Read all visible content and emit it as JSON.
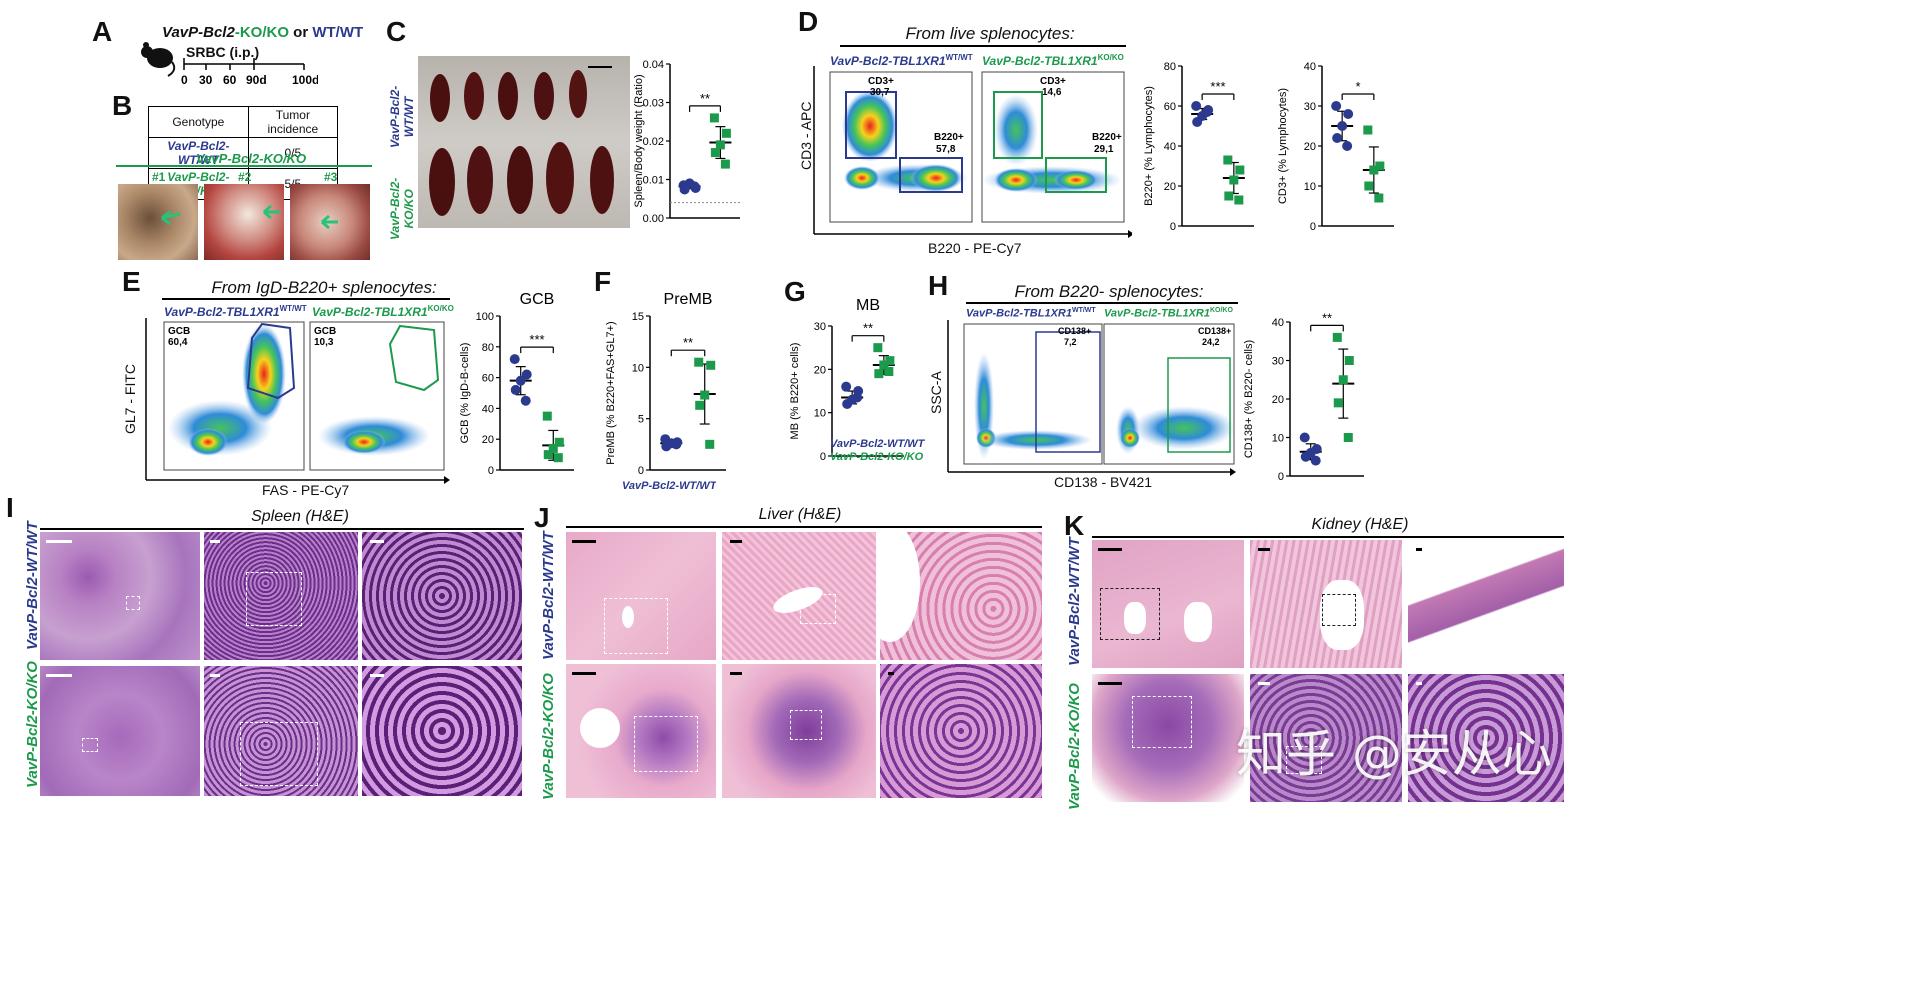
{
  "panels": {
    "A": {
      "label": "A",
      "title_part1": "VavP-Bcl2",
      "title_part2": "-KO/KO",
      "title_or": " or ",
      "title_part3": "WT/WT",
      "treatment": "SRBC (i.p.)",
      "days": [
        "0",
        "30",
        "60",
        "90d",
        "100d"
      ]
    },
    "B": {
      "label": "B",
      "table": {
        "headers": [
          "Genotype",
          "Tumor incidence"
        ],
        "rows": [
          [
            "VavP-Bcl2-WT/WT",
            "0/5"
          ],
          [
            "VavP-Bcl2-KO/KO",
            "5/5"
          ]
        ]
      },
      "photo_title": "VavP-Bcl2-KO/KO",
      "photos": [
        "#1",
        "#2",
        "#3"
      ]
    },
    "C": {
      "label": "C",
      "row_wt": "VavP-Bcl2-\nWT/WT",
      "row_ko": "VavP-Bcl2-\nKO/KO"
    },
    "D": {
      "label": "D",
      "header": "From live splenocytes:",
      "title_wt": "VavP-Bcl2-TBL1XR1",
      "sup_wt": "WT/WT",
      "title_ko": "VavP-Bcl2-TBL1XR1",
      "sup_ko": "KO/KO",
      "ylabel": "CD3 - APC",
      "xlabel": "B220 - PE-Cy7",
      "gates_wt": [
        {
          "name": "CD3+",
          "value": "30,7"
        },
        {
          "name": "B220+",
          "value": "57,8"
        }
      ],
      "gates_ko": [
        {
          "name": "CD3+",
          "value": "14,6"
        },
        {
          "name": "B220+",
          "value": "29,1"
        }
      ]
    },
    "E": {
      "label": "E",
      "header": "From IgD-B220+ splenocytes:",
      "title_wt": "VavP-Bcl2-TBL1XR1",
      "sup_wt": "WT/WT",
      "title_ko": "VavP-Bcl2-TBL1XR1",
      "sup_ko": "KO/KO",
      "ylabel": "GL7 - FITC",
      "xlabel": "FAS - PE-Cy7",
      "gate_wt": {
        "name": "GCB",
        "value": "60,4"
      },
      "gate_ko": {
        "name": "GCB",
        "value": "10,3"
      }
    },
    "F": {
      "label": "F"
    },
    "G": {
      "label": "G",
      "legend": [
        "VavP-Bcl2-WT/WT",
        "VavP-Bcl2-KO/KO"
      ]
    },
    "H": {
      "label": "H",
      "header": "From B220- splenocytes:",
      "title_wt": "VavP-Bcl2-TBL1XR1",
      "sup_wt": "WT/WT",
      "title_ko": "VavP-Bcl2-TBL1XR1",
      "sup_ko": "KO/KO",
      "ylabel": "SSC-A",
      "xlabel": "CD138 - BV421",
      "gate_wt": {
        "name": "CD138+",
        "value": "7,2"
      },
      "gate_ko": {
        "name": "CD138+",
        "value": "24,2"
      }
    },
    "I": {
      "label": "I",
      "header": "Spleen (H&E)",
      "row_wt": "VavP-Bcl2-WT/WT",
      "row_ko": "VavP-Bcl2-KO/KO"
    },
    "J": {
      "label": "J",
      "header": "Liver (H&E)",
      "row_wt": "VavP-Bcl2-WT/WT",
      "row_ko": "VavP-Bcl2-KO/KO"
    },
    "K": {
      "label": "K",
      "header": "Kidney (H&E)",
      "row_wt": "VavP-Bcl2-WT/WT",
      "row_ko": "VavP-Bcl2-KO/KO"
    }
  },
  "colors": {
    "wt": "#2b3a8f",
    "ko": "#1b9a4c"
  },
  "watermark": "知乎 @安从心",
  "chart_data": [
    {
      "id": "C",
      "type": "scatter",
      "title": "",
      "ylabel": "Spleen/Body weight (Ratio)",
      "ylim": [
        0,
        0.04
      ],
      "yticks": [
        "0.00",
        "0.01",
        "0.02",
        "0.03",
        "0.04"
      ],
      "significance": "**",
      "groups": [
        {
          "name": "WT/WT",
          "values": [
            0.0085,
            0.0078,
            0.009,
            0.0074,
            0.0082
          ],
          "mean": 0.0082
        },
        {
          "name": "KO/KO",
          "values": [
            0.026,
            0.022,
            0.019,
            0.017,
            0.014
          ],
          "mean": 0.0196
        }
      ],
      "baseline": 0.004
    },
    {
      "id": "D1",
      "type": "scatter",
      "title": "",
      "ylabel": "B220+ (% Lymphocytes)",
      "ylim": [
        0,
        80
      ],
      "yticks": [
        "0",
        "20",
        "40",
        "60",
        "80"
      ],
      "significance": "***",
      "groups": [
        {
          "name": "WT/WT",
          "values": [
            60,
            58,
            55,
            52,
            57
          ],
          "mean": 56
        },
        {
          "name": "KO/KO",
          "values": [
            33,
            28,
            23,
            15,
            13
          ],
          "mean": 24
        }
      ]
    },
    {
      "id": "D2",
      "type": "scatter",
      "title": "",
      "ylabel": "CD3+ (% Lymphocytes)",
      "ylim": [
        0,
        40
      ],
      "yticks": [
        "0",
        "10",
        "20",
        "30",
        "40"
      ],
      "significance": "*",
      "groups": [
        {
          "name": "WT/WT",
          "values": [
            30,
            28,
            25,
            22,
            20
          ],
          "mean": 25
        },
        {
          "name": "KO/KO",
          "values": [
            24,
            15,
            14,
            10,
            7
          ],
          "mean": 14
        }
      ]
    },
    {
      "id": "E",
      "type": "scatter",
      "title": "GCB",
      "ylabel": "GCB (% IgD-B-cells)",
      "ylim": [
        0,
        100
      ],
      "yticks": [
        "0",
        "20",
        "40",
        "60",
        "80",
        "100"
      ],
      "significance": "***",
      "groups": [
        {
          "name": "WT/WT",
          "values": [
            72,
            62,
            58,
            52,
            45
          ],
          "mean": 58
        },
        {
          "name": "KO/KO",
          "values": [
            35,
            18,
            14,
            10,
            8
          ],
          "mean": 16
        }
      ]
    },
    {
      "id": "F",
      "type": "scatter",
      "title": "PreMB",
      "ylabel": "PreMB (% B220+FAS+GL7+)",
      "ylim": [
        0,
        15
      ],
      "yticks": [
        "0",
        "5",
        "10",
        "15"
      ],
      "significance": "**",
      "groups": [
        {
          "name": "WT/WT",
          "values": [
            3.0,
            2.7,
            2.6,
            2.3,
            2.5
          ],
          "mean": 2.6
        },
        {
          "name": "KO/KO",
          "values": [
            10.5,
            10.2,
            7.3,
            6.3,
            2.5
          ],
          "mean": 7.4
        }
      ]
    },
    {
      "id": "G",
      "type": "scatter",
      "title": "MB",
      "ylabel": "MB (% B220+ cells)",
      "ylim": [
        0,
        30
      ],
      "yticks": [
        "0",
        "10",
        "20",
        "30"
      ],
      "significance": "**",
      "groups": [
        {
          "name": "WT/WT",
          "values": [
            16,
            15,
            13,
            12,
            13.5
          ],
          "mean": 13.5
        },
        {
          "name": "KO/KO",
          "values": [
            25,
            22,
            21,
            19,
            19.5
          ],
          "mean": 21
        }
      ]
    },
    {
      "id": "H",
      "type": "scatter",
      "title": "",
      "ylabel": "CD138+ (% B220- cells)",
      "ylim": [
        0,
        40
      ],
      "yticks": [
        "0",
        "10",
        "20",
        "30",
        "40"
      ],
      "significance": "**",
      "groups": [
        {
          "name": "WT/WT",
          "values": [
            10,
            7,
            6,
            5,
            4
          ],
          "mean": 6.3
        },
        {
          "name": "KO/KO",
          "values": [
            36,
            30,
            25,
            19,
            10
          ],
          "mean": 24
        }
      ]
    }
  ]
}
